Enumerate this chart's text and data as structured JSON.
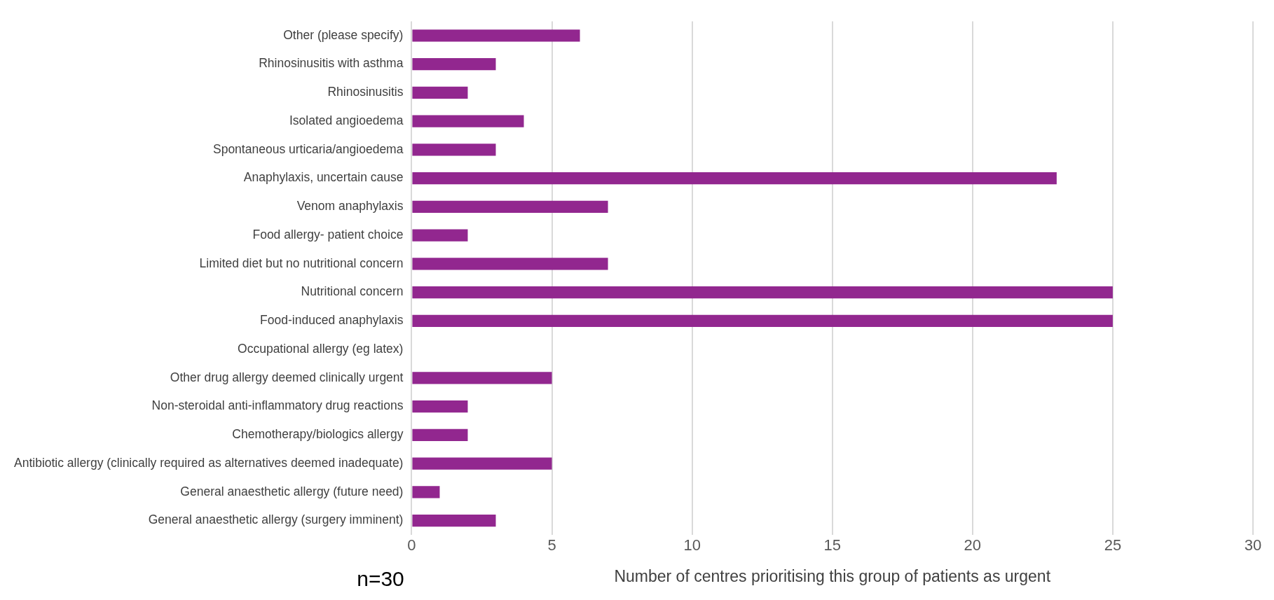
{
  "chart_data": {
    "type": "bar",
    "orientation": "horizontal",
    "xlabel": "Number of centres prioritising this group of patients as urgent",
    "categories": [
      "Other (please specify)",
      "Rhinosinusitis with asthma",
      "Rhinosinusitis",
      "Isolated angioedema",
      "Spontaneous urticaria/angioedema",
      "Anaphylaxis, uncertain cause",
      "Venom anaphylaxis",
      "Food allergy- patient choice",
      "Limited diet but no nutritional concern",
      "Nutritional concern",
      "Food-induced anaphylaxis",
      "Occupational allergy (eg latex)",
      "Other drug allergy deemed clinically urgent",
      "Non-steroidal anti-inflammatory drug reactions",
      "Chemotherapy/biologics allergy",
      "Antibiotic allergy (clinically required as alternatives deemed inadequate)",
      "General anaesthetic allergy (future need)",
      "General anaesthetic allergy (surgery imminent)"
    ],
    "values": [
      6,
      3,
      2,
      4,
      3,
      23,
      7,
      2,
      7,
      25,
      25,
      0,
      5,
      2,
      2,
      5,
      1,
      3
    ],
    "color": "#92278f",
    "xlim": [
      0,
      30
    ],
    "xticks": [
      0,
      5,
      10,
      15,
      20,
      25,
      30
    ],
    "grid": "x",
    "legend": false,
    "annotations": [
      "n=30"
    ]
  }
}
